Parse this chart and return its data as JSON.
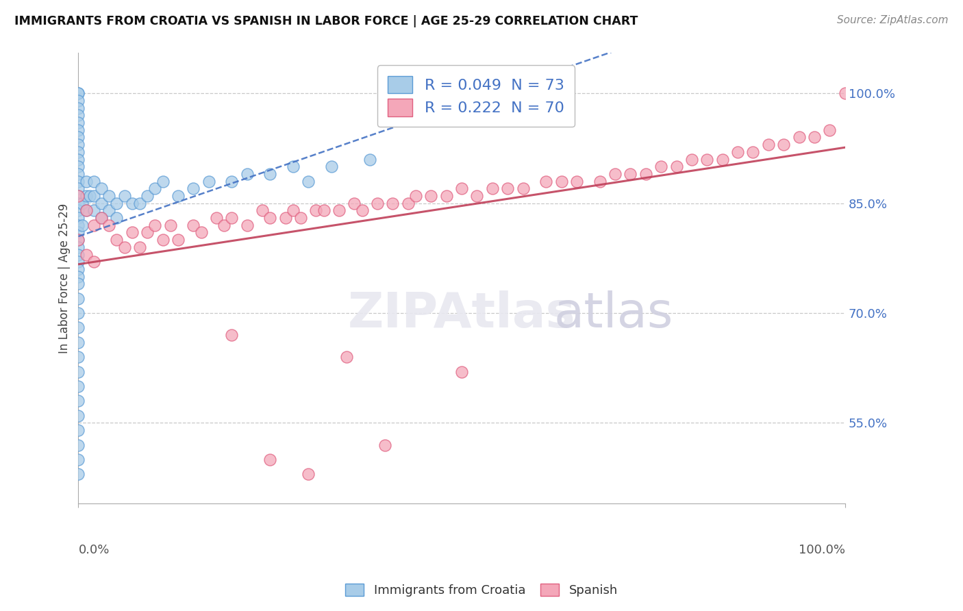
{
  "title": "IMMIGRANTS FROM CROATIA VS SPANISH IN LABOR FORCE | AGE 25-29 CORRELATION CHART",
  "source": "Source: ZipAtlas.com",
  "ylabel": "In Labor Force | Age 25-29",
  "ytick_labels": [
    "55.0%",
    "70.0%",
    "85.0%",
    "100.0%"
  ],
  "ytick_values": [
    0.55,
    0.7,
    0.85,
    1.0
  ],
  "xmin": 0.0,
  "xmax": 1.0,
  "ymin": 0.44,
  "ymax": 1.055,
  "legend_labels": [
    "Immigrants from Croatia",
    "Spanish"
  ],
  "legend_r_labels": [
    "R = 0.049  N = 73",
    "R = 0.222  N = 70"
  ],
  "series1_facecolor": "#a8cce8",
  "series1_edgecolor": "#5b9bd5",
  "series2_facecolor": "#f4a7b9",
  "series2_edgecolor": "#e06080",
  "trendline1_color": "#4472C4",
  "trendline2_color": "#c0405a",
  "Croatia_x": [
    0.0,
    0.0,
    0.0,
    0.0,
    0.0,
    0.0,
    0.0,
    0.0,
    0.0,
    0.0,
    0.0,
    0.0,
    0.0,
    0.0,
    0.0,
    0.0,
    0.0,
    0.0,
    0.0,
    0.0,
    0.0,
    0.0,
    0.0,
    0.0,
    0.0,
    0.0,
    0.0,
    0.0,
    0.0,
    0.0,
    0.0,
    0.0,
    0.0,
    0.0,
    0.0,
    0.0,
    0.0,
    0.0,
    0.0,
    0.0,
    0.0,
    0.005,
    0.005,
    0.01,
    0.01,
    0.01,
    0.015,
    0.02,
    0.02,
    0.02,
    0.03,
    0.03,
    0.03,
    0.04,
    0.04,
    0.05,
    0.05,
    0.06,
    0.07,
    0.08,
    0.09,
    0.1,
    0.11,
    0.13,
    0.15,
    0.17,
    0.2,
    0.22,
    0.25,
    0.28,
    0.3,
    0.33,
    0.38
  ],
  "Croatia_y": [
    1.0,
    1.0,
    0.99,
    0.98,
    0.97,
    0.96,
    0.95,
    0.94,
    0.93,
    0.92,
    0.91,
    0.9,
    0.89,
    0.88,
    0.87,
    0.86,
    0.85,
    0.84,
    0.83,
    0.82,
    0.81,
    0.8,
    0.79,
    0.78,
    0.77,
    0.76,
    0.75,
    0.74,
    0.72,
    0.7,
    0.68,
    0.66,
    0.64,
    0.62,
    0.6,
    0.58,
    0.56,
    0.54,
    0.52,
    0.5,
    0.48,
    0.85,
    0.82,
    0.88,
    0.86,
    0.84,
    0.86,
    0.88,
    0.86,
    0.84,
    0.87,
    0.85,
    0.83,
    0.86,
    0.84,
    0.85,
    0.83,
    0.86,
    0.85,
    0.85,
    0.86,
    0.87,
    0.88,
    0.86,
    0.87,
    0.88,
    0.88,
    0.89,
    0.89,
    0.9,
    0.88,
    0.9,
    0.91
  ],
  "Spanish_x": [
    0.0,
    0.0,
    0.01,
    0.01,
    0.02,
    0.02,
    0.03,
    0.04,
    0.05,
    0.06,
    0.07,
    0.08,
    0.09,
    0.1,
    0.11,
    0.12,
    0.13,
    0.15,
    0.16,
    0.18,
    0.19,
    0.2,
    0.22,
    0.24,
    0.25,
    0.27,
    0.28,
    0.29,
    0.31,
    0.32,
    0.34,
    0.36,
    0.37,
    0.39,
    0.41,
    0.43,
    0.44,
    0.46,
    0.48,
    0.5,
    0.52,
    0.54,
    0.56,
    0.58,
    0.61,
    0.63,
    0.65,
    0.68,
    0.7,
    0.72,
    0.74,
    0.76,
    0.78,
    0.8,
    0.82,
    0.84,
    0.86,
    0.88,
    0.9,
    0.92,
    0.94,
    0.96,
    0.98,
    1.0,
    0.2,
    0.35,
    0.5,
    0.4,
    0.25,
    0.3
  ],
  "Spanish_y": [
    0.86,
    0.8,
    0.84,
    0.78,
    0.82,
    0.77,
    0.83,
    0.82,
    0.8,
    0.79,
    0.81,
    0.79,
    0.81,
    0.82,
    0.8,
    0.82,
    0.8,
    0.82,
    0.81,
    0.83,
    0.82,
    0.83,
    0.82,
    0.84,
    0.83,
    0.83,
    0.84,
    0.83,
    0.84,
    0.84,
    0.84,
    0.85,
    0.84,
    0.85,
    0.85,
    0.85,
    0.86,
    0.86,
    0.86,
    0.87,
    0.86,
    0.87,
    0.87,
    0.87,
    0.88,
    0.88,
    0.88,
    0.88,
    0.89,
    0.89,
    0.89,
    0.9,
    0.9,
    0.91,
    0.91,
    0.91,
    0.92,
    0.92,
    0.93,
    0.93,
    0.94,
    0.94,
    0.95,
    1.0,
    0.67,
    0.64,
    0.62,
    0.52,
    0.5,
    0.48
  ]
}
